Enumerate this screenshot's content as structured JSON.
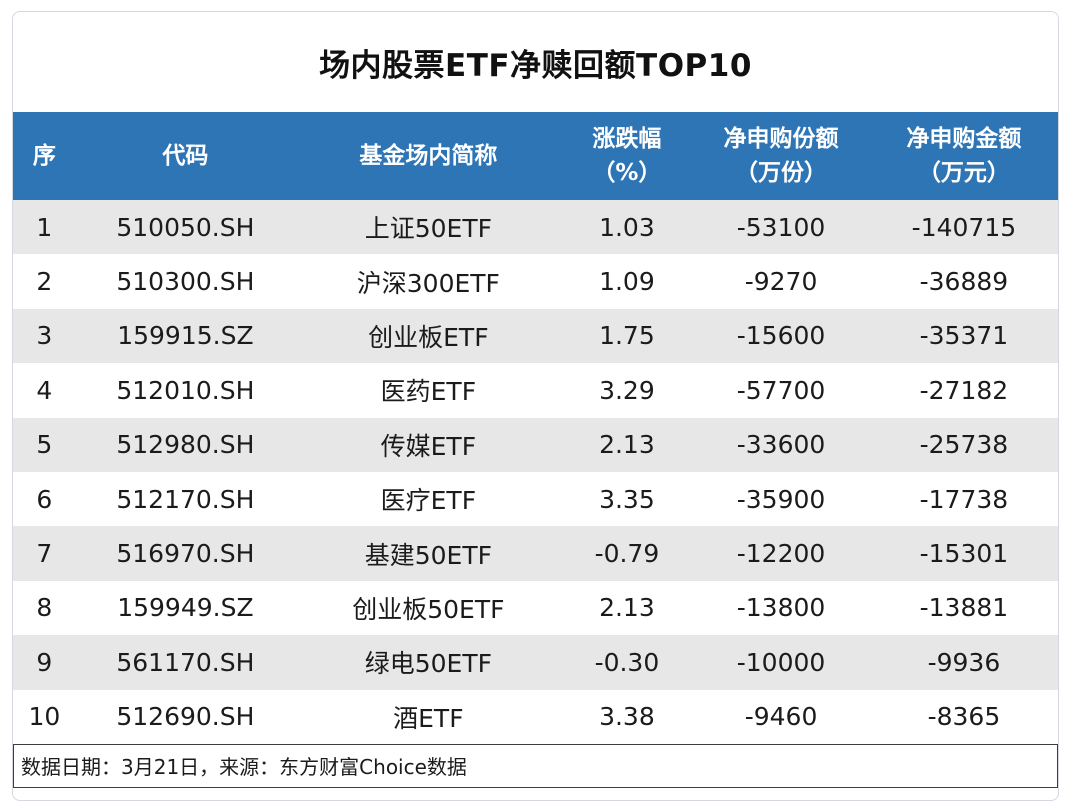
{
  "chart_data": {
    "type": "table",
    "title": "场内股票ETF净赎回额TOP10",
    "columns": [
      {
        "key": "rank",
        "label": "序",
        "unit": ""
      },
      {
        "key": "code",
        "label": "代码",
        "unit": ""
      },
      {
        "key": "name",
        "label": "基金场内简称",
        "unit": ""
      },
      {
        "key": "change",
        "label": "涨跌幅",
        "unit": "（%）"
      },
      {
        "key": "shares",
        "label": "净申购份额",
        "unit": "（万份）"
      },
      {
        "key": "amount",
        "label": "净申购金额",
        "unit": "（万元）"
      }
    ],
    "rows": [
      [
        "1",
        "510050.SH",
        "上证50ETF",
        "1.03",
        "-53100",
        "-140715"
      ],
      [
        "2",
        "510300.SH",
        "沪深300ETF",
        "1.09",
        "-9270",
        "-36889"
      ],
      [
        "3",
        "159915.SZ",
        "创业板ETF",
        "1.75",
        "-15600",
        "-35371"
      ],
      [
        "4",
        "512010.SH",
        "医药ETF",
        "3.29",
        "-57700",
        "-27182"
      ],
      [
        "5",
        "512980.SH",
        "传媒ETF",
        "2.13",
        "-33600",
        "-25738"
      ],
      [
        "6",
        "512170.SH",
        "医疗ETF",
        "3.35",
        "-35900",
        "-17738"
      ],
      [
        "7",
        "516970.SH",
        "基建50ETF",
        "-0.79",
        "-12200",
        "-15301"
      ],
      [
        "8",
        "159949.SZ",
        "创业板50ETF",
        "2.13",
        "-13800",
        "-13881"
      ],
      [
        "9",
        "561170.SH",
        "绿电50ETF",
        "-0.30",
        "-10000",
        "-9936"
      ],
      [
        "10",
        "512690.SH",
        "酒ETF",
        "3.38",
        "-9460",
        "-8365"
      ]
    ],
    "source_note": "数据日期：3月21日，来源：东方财富Choice数据",
    "colors": {
      "header_bg": "#2E75B6",
      "header_text": "#ffffff",
      "row_alt_bg": "#e7e7e7",
      "row_bg": "#ffffff",
      "body_text": "#1b1b1b",
      "card_border": "#d5d8df",
      "footer_border": "#3d3d3d"
    }
  }
}
